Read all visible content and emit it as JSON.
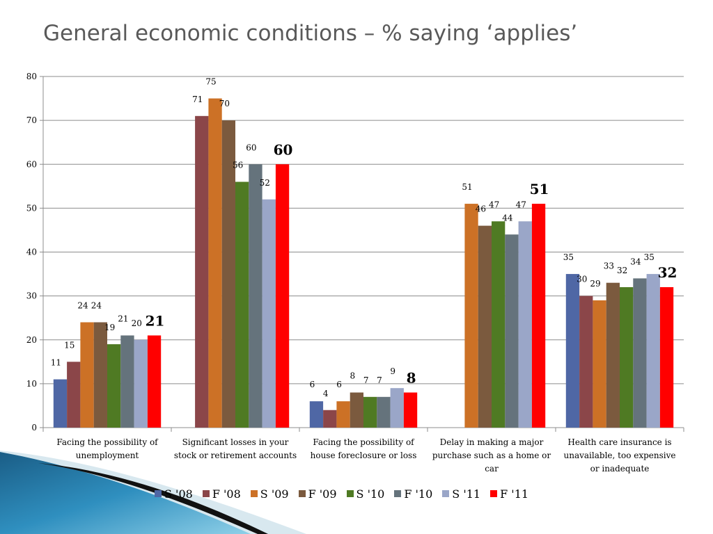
{
  "slide": {
    "title": "General economic conditions – % saying ‘applies’"
  },
  "chart_data": {
    "type": "bar",
    "title": "",
    "xlabel": "",
    "ylabel": "",
    "ylim": [
      0,
      80
    ],
    "yticks": [
      0,
      10,
      20,
      30,
      40,
      50,
      60,
      70,
      80
    ],
    "grid": true,
    "legend_position": "bottom",
    "categories": [
      [
        "Facing the possibility of",
        "unemployment"
      ],
      [
        "Significant losses in your",
        "stock or retirement accounts"
      ],
      [
        "Facing the possibility of",
        "house foreclosure or loss"
      ],
      [
        "Delay in making a major",
        "purchase such as a home or",
        "car"
      ],
      [
        "Health care insurance is",
        "unavailable, too expensive",
        "or inadequate"
      ]
    ],
    "series": [
      {
        "name": "S '08",
        "color": "#4f67a5",
        "values": [
          11,
          null,
          6,
          null,
          35
        ]
      },
      {
        "name": "F '08",
        "color": "#8b4649",
        "values": [
          15,
          71,
          4,
          null,
          30
        ]
      },
      {
        "name": "S '09",
        "color": "#cc7126",
        "values": [
          24,
          75,
          6,
          51,
          29
        ]
      },
      {
        "name": "F '09",
        "color": "#7b5a3e",
        "values": [
          24,
          70,
          8,
          46,
          33
        ]
      },
      {
        "name": "S '10",
        "color": "#4f7a23",
        "values": [
          19,
          56,
          7,
          47,
          32
        ]
      },
      {
        "name": "F '10",
        "color": "#65737c",
        "values": [
          21,
          60,
          7,
          44,
          34
        ]
      },
      {
        "name": "S '11",
        "color": "#9aa6c8",
        "values": [
          20,
          52,
          9,
          47,
          35
        ]
      },
      {
        "name": "F '11",
        "color": "#ff0000",
        "values": [
          21,
          60,
          8,
          51,
          32
        ],
        "emphasized": true
      }
    ]
  }
}
